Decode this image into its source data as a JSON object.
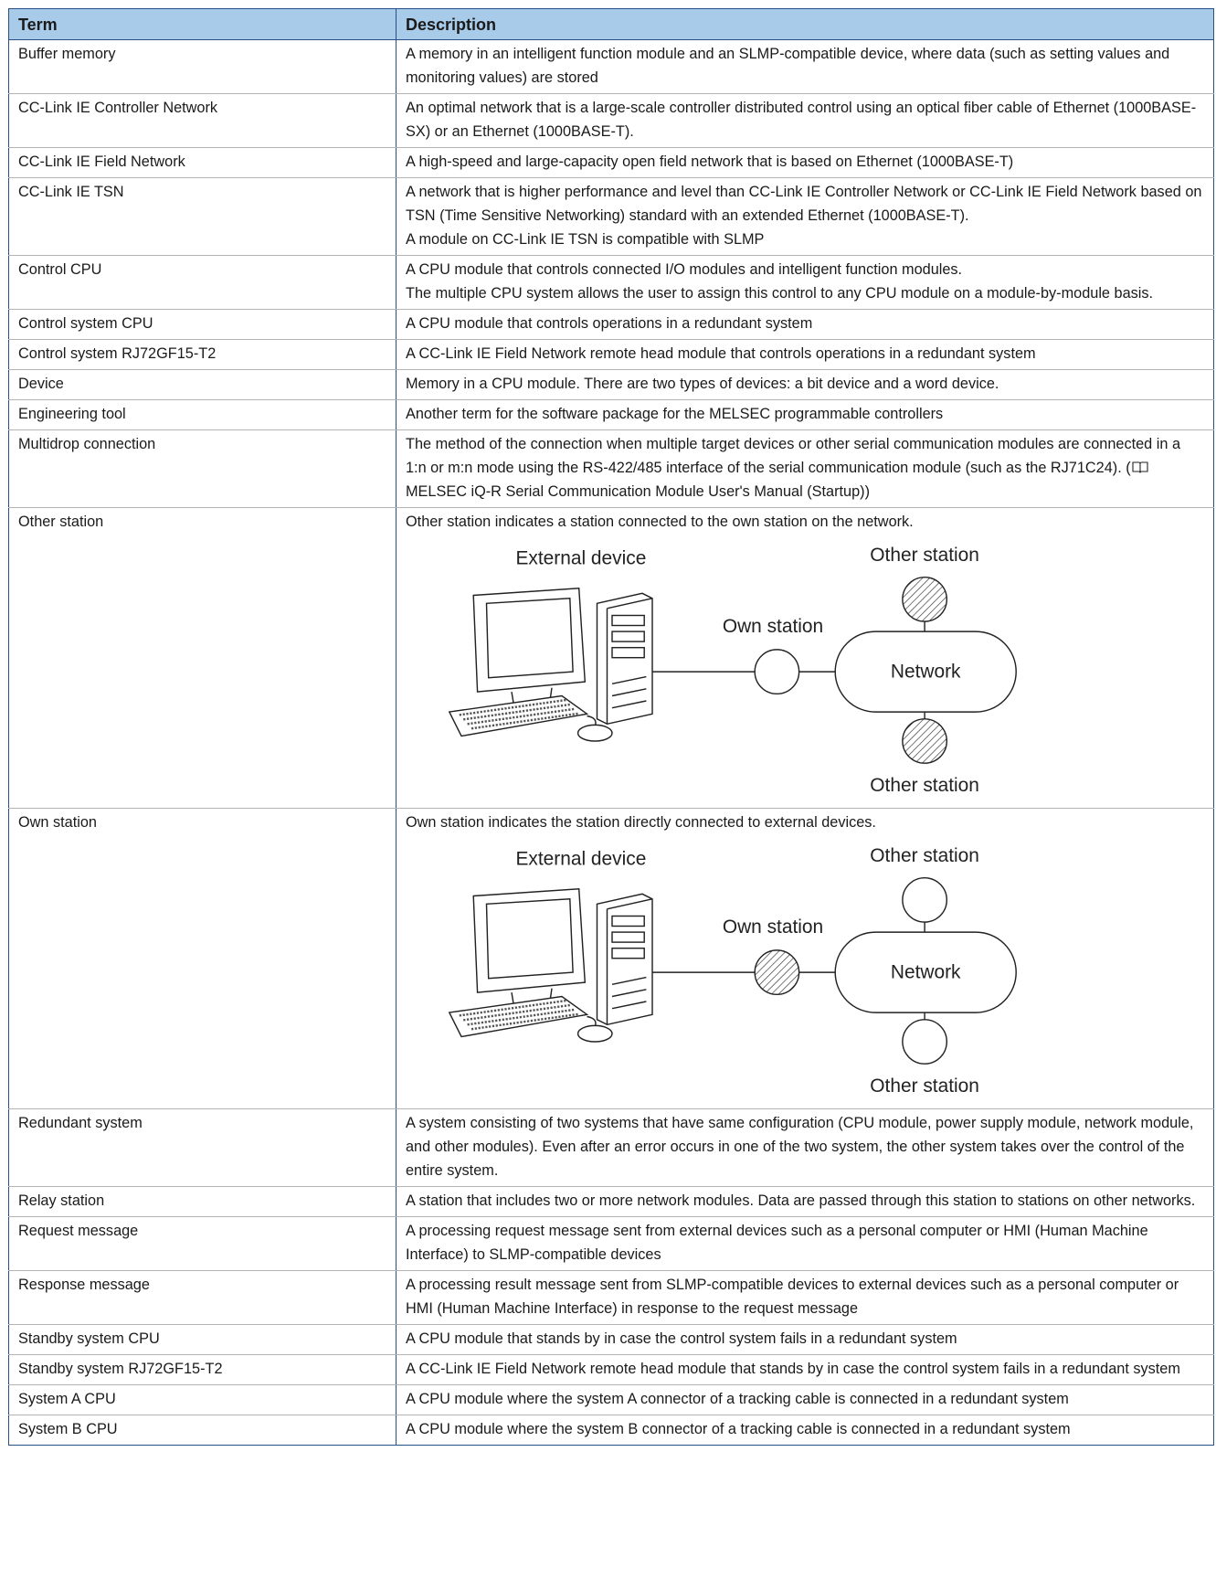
{
  "table": {
    "columns": [
      "Term",
      "Description"
    ],
    "rows": [
      {
        "term": "Buffer memory",
        "description": [
          "A memory in an intelligent function module and an SLMP-compatible device, where data (such as setting values and monitoring values) are stored"
        ]
      },
      {
        "term": "CC-Link IE Controller Network",
        "description": [
          "An optimal network that is a large-scale controller distributed control using an optical fiber cable of Ethernet (1000BASE-SX) or an Ethernet (1000BASE-T)."
        ]
      },
      {
        "term": "CC-Link IE Field Network",
        "description": [
          "A high-speed and large-capacity open field network that is based on Ethernet (1000BASE-T)"
        ]
      },
      {
        "term": "CC-Link IE TSN",
        "description": [
          "A network that is higher performance and level than CC-Link IE Controller Network or CC-Link IE Field Network based on TSN (Time Sensitive Networking) standard with an extended Ethernet (1000BASE-T).",
          "A module on CC-Link IE TSN is compatible with SLMP"
        ]
      },
      {
        "term": "Control CPU",
        "description": [
          "A CPU module that controls connected I/O modules and intelligent function modules.",
          "The multiple CPU system allows the user to assign this control to any CPU module on a module-by-module basis."
        ]
      },
      {
        "term": "Control system CPU",
        "description": [
          "A CPU module that controls operations in a redundant system"
        ]
      },
      {
        "term": "Control system RJ72GF15-T2",
        "description": [
          "A CC-Link IE Field Network remote head module that controls operations in a redundant system"
        ]
      },
      {
        "term": "Device",
        "description": [
          "Memory in a CPU module. There are two types of devices: a bit device and a word device."
        ]
      },
      {
        "term": "Engineering tool",
        "description": [
          "Another term for the software package for the MELSEC programmable controllers"
        ]
      },
      {
        "term": "Multidrop connection",
        "description": [
          "The method of the connection when multiple target devices or other serial communication modules are connected in a 1:n or m:n mode using the RS-422/485 interface of the serial communication module (such as the RJ71C24). ("
        ],
        "reference": "MELSEC iQ-R Serial Communication Module User's Manual (Startup))"
      },
      {
        "term": "Other station",
        "description": [
          "Other station indicates a station connected to the own station on the network."
        ],
        "diagram": {
          "external_device": "External device",
          "own_station": "Own station",
          "network": "Network",
          "other_station_top": "Other station",
          "other_station_bottom": "Other station"
        }
      },
      {
        "term": "Own station",
        "description": [
          "Own station indicates the station directly connected to external devices."
        ],
        "diagram": {
          "external_device": "External device",
          "own_station": "Own station",
          "network": "Network",
          "other_station_top": "Other station",
          "other_station_bottom": "Other station"
        }
      },
      {
        "term": "Redundant system",
        "description": [
          "A system consisting of two systems that have same configuration (CPU module, power supply module, network module, and other modules). Even after an error occurs in one of the two system, the other system takes over the control of the entire system."
        ]
      },
      {
        "term": "Relay station",
        "description": [
          "A station that includes two or more network modules. Data are passed through this station to stations on other networks."
        ]
      },
      {
        "term": "Request message",
        "description": [
          "A processing request message sent from external devices such as a personal computer or HMI (Human Machine Interface) to SLMP-compatible devices"
        ]
      },
      {
        "term": "Response message",
        "description": [
          "A processing result message sent from SLMP-compatible devices to external devices such as a personal computer or HMI (Human Machine Interface) in response to the request message"
        ]
      },
      {
        "term": "Standby system CPU",
        "description": [
          "A CPU module that stands by in case the control system fails in a redundant system"
        ]
      },
      {
        "term": "Standby system RJ72GF15-T2",
        "description": [
          "A CC-Link IE Field Network remote head module that stands by in case the control system fails in a redundant system"
        ]
      },
      {
        "term": "System A CPU",
        "description": [
          "A CPU module where the system A connector of a tracking cable is connected in a redundant system"
        ]
      },
      {
        "term": "System B CPU",
        "description": [
          "A CPU module where the system B connector of a tracking cable is connected in a redundant system"
        ]
      }
    ]
  }
}
